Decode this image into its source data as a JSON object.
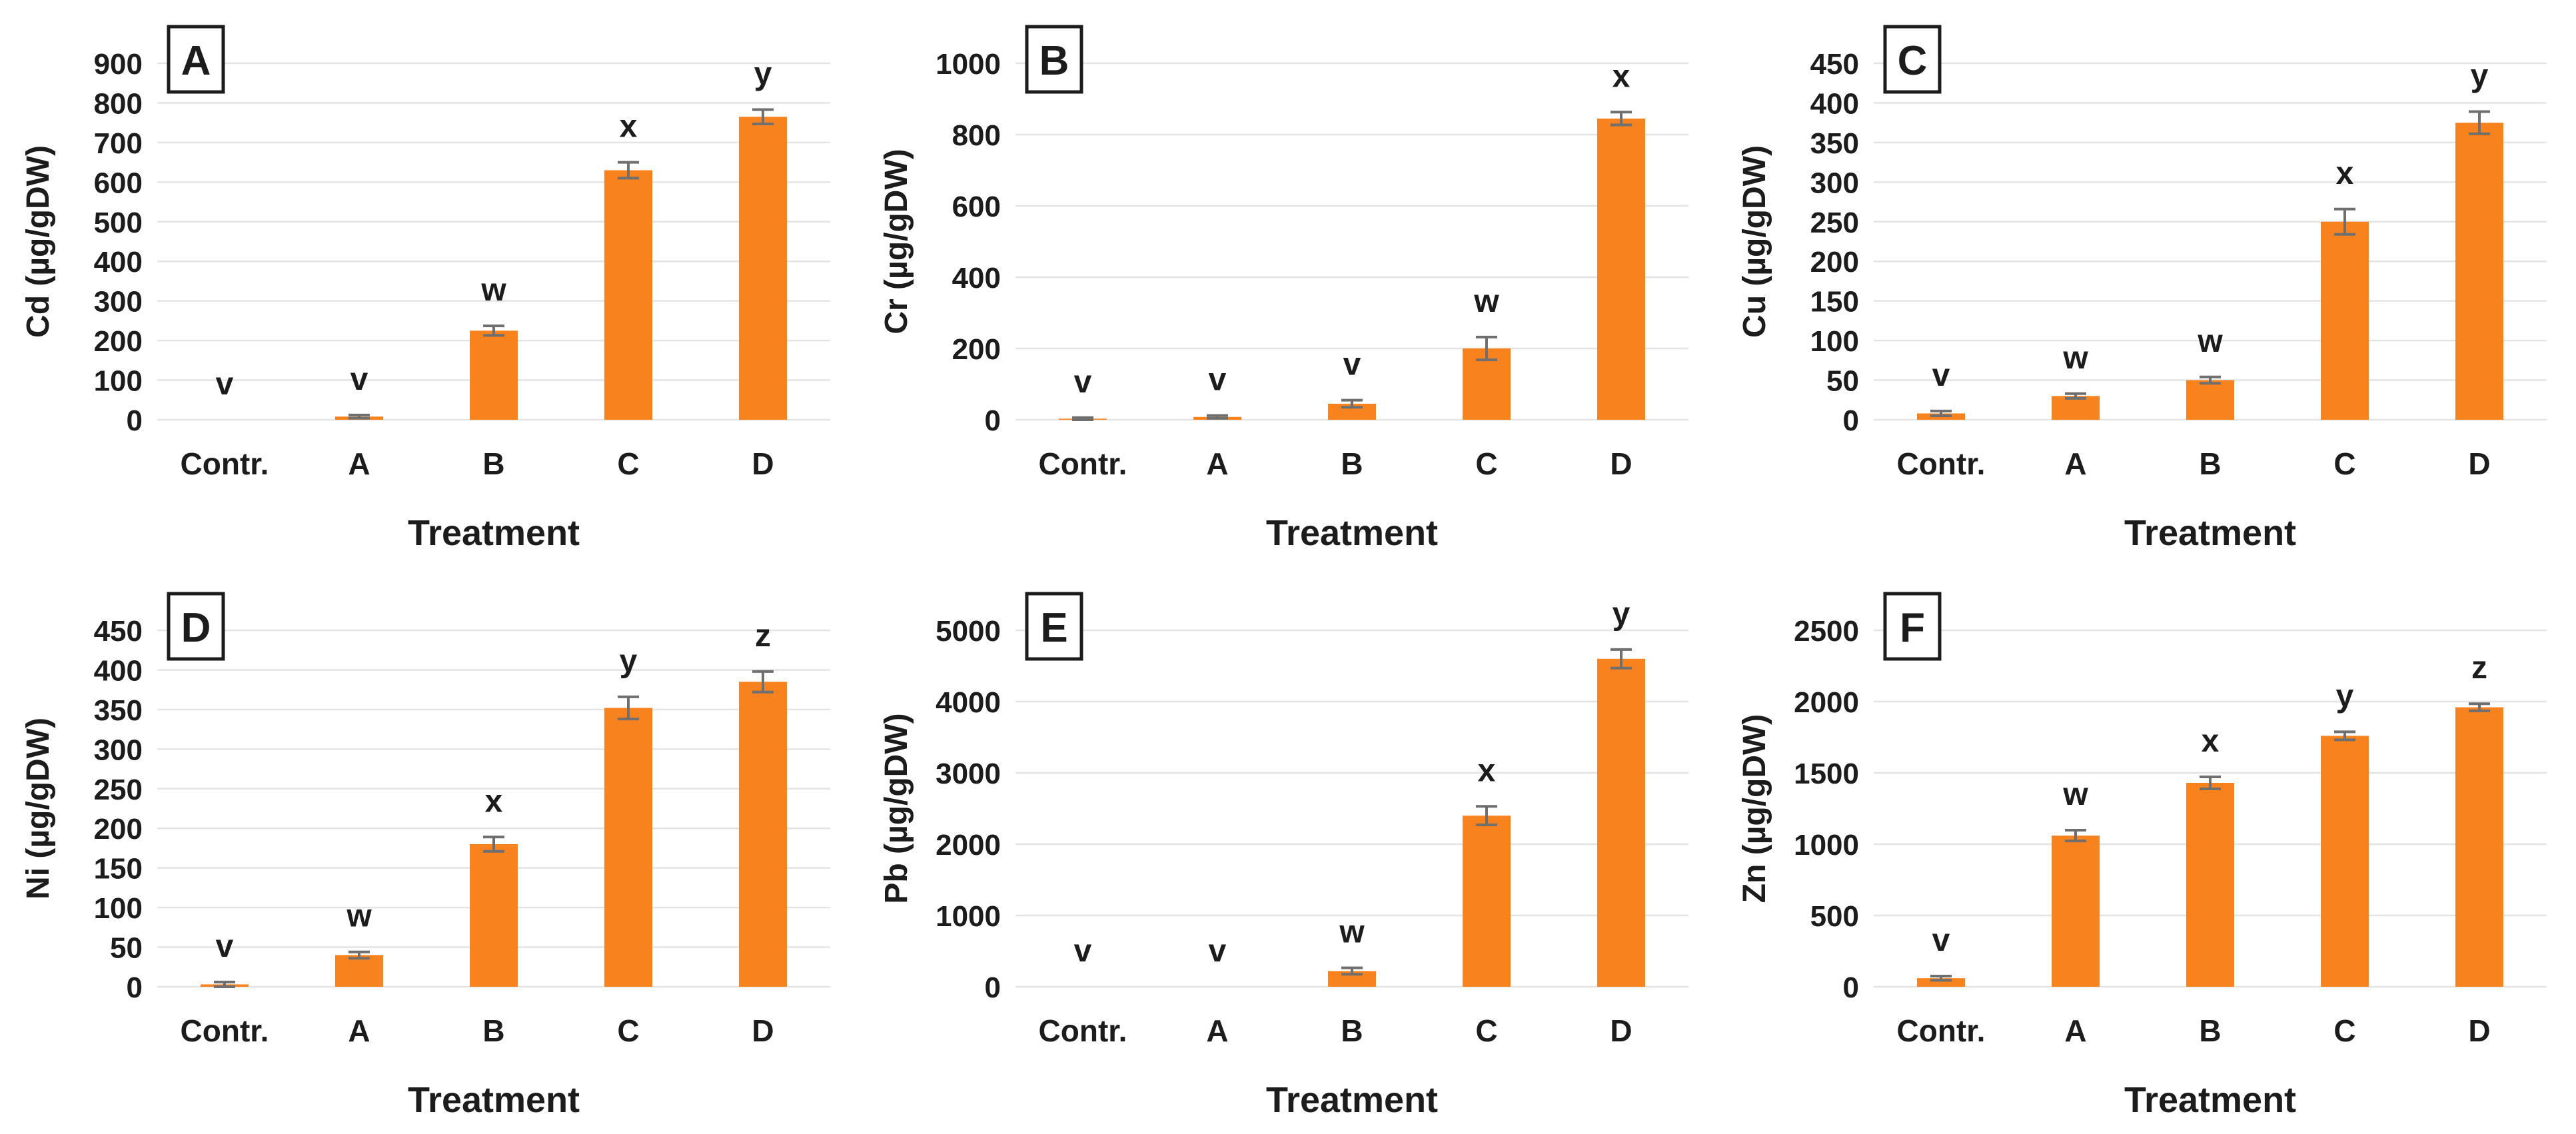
{
  "figure_name": "heavy-metal-accumulation-bar-charts",
  "x_axis_title": "Treatment",
  "categories": [
    "Contr.",
    "A",
    "B",
    "C",
    "D"
  ],
  "colors": {
    "bar": "#F8831E",
    "error_bar": "#6F6F6F",
    "gridline": "#E4E4E4",
    "text": "#1C1C1C",
    "panel_box_border": "#1C1C1C",
    "background": "#FFFFFF"
  },
  "chart_data": [
    {
      "type": "bar",
      "panel_label": "A",
      "ylabel": "Cd (µg/gDW)",
      "xlabel": "Treatment",
      "categories": [
        "Contr.",
        "A",
        "B",
        "C",
        "D"
      ],
      "values": [
        0,
        8,
        225,
        630,
        765
      ],
      "errors": [
        0,
        4,
        12,
        20,
        18
      ],
      "sig_letters": [
        "v",
        "v",
        "w",
        "x",
        "y"
      ],
      "ylim": [
        0,
        900
      ],
      "ytick_step": 100,
      "grid": true,
      "legend": "none"
    },
    {
      "type": "bar",
      "panel_label": "B",
      "ylabel": "Cr (µg/gDW)",
      "xlabel": "Treatment",
      "categories": [
        "Contr.",
        "A",
        "B",
        "C",
        "D"
      ],
      "values": [
        3,
        8,
        45,
        200,
        845
      ],
      "errors": [
        3,
        4,
        10,
        32,
        18
      ],
      "sig_letters": [
        "v",
        "v",
        "v",
        "w",
        "x"
      ],
      "ylim": [
        0,
        1000
      ],
      "ytick_step": 200,
      "grid": true,
      "legend": "none"
    },
    {
      "type": "bar",
      "panel_label": "C",
      "ylabel": "Cu (µg/gDW)",
      "xlabel": "Treatment",
      "categories": [
        "Contr.",
        "A",
        "B",
        "C",
        "D"
      ],
      "values": [
        8,
        30,
        50,
        250,
        375
      ],
      "errors": [
        3,
        3,
        4,
        16,
        14
      ],
      "sig_letters": [
        "v",
        "w",
        "w",
        "x",
        "y"
      ],
      "ylim": [
        0,
        450
      ],
      "ytick_step": 50,
      "grid": true,
      "legend": "none"
    },
    {
      "type": "bar",
      "panel_label": "D",
      "ylabel": "Ni (µg/gDW)",
      "xlabel": "Treatment",
      "categories": [
        "Contr.",
        "A",
        "B",
        "C",
        "D"
      ],
      "values": [
        3,
        40,
        180,
        352,
        385
      ],
      "errors": [
        3,
        4,
        9,
        14,
        13
      ],
      "sig_letters": [
        "v",
        "w",
        "x",
        "y",
        "z"
      ],
      "ylim": [
        0,
        450
      ],
      "ytick_step": 50,
      "grid": true,
      "legend": "none"
    },
    {
      "type": "bar",
      "panel_label": "E",
      "ylabel": "Pb (µg/gDW)",
      "xlabel": "Treatment",
      "categories": [
        "Contr.",
        "A",
        "B",
        "C",
        "D"
      ],
      "values": [
        0,
        0,
        220,
        2400,
        4600
      ],
      "errors": [
        0,
        0,
        45,
        130,
        130
      ],
      "sig_letters": [
        "v",
        "v",
        "w",
        "x",
        "y"
      ],
      "ylim": [
        0,
        5000
      ],
      "ytick_step": 1000,
      "grid": true,
      "legend": "none"
    },
    {
      "type": "bar",
      "panel_label": "F",
      "ylabel": "Zn (µg/gDW)",
      "xlabel": "Treatment",
      "categories": [
        "Contr.",
        "A",
        "B",
        "C",
        "D"
      ],
      "values": [
        60,
        1060,
        1430,
        1760,
        1960
      ],
      "errors": [
        15,
        38,
        42,
        28,
        25
      ],
      "sig_letters": [
        "v",
        "w",
        "x",
        "y",
        "z"
      ],
      "ylim": [
        0,
        2500
      ],
      "ytick_step": 500,
      "grid": true,
      "legend": "none"
    }
  ]
}
